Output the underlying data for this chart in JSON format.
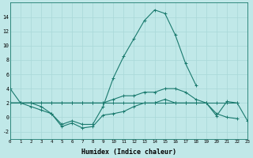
{
  "x": [
    0,
    1,
    2,
    3,
    4,
    5,
    6,
    7,
    8,
    9,
    10,
    11,
    12,
    13,
    14,
    15,
    16,
    17,
    18,
    19,
    20,
    21,
    22,
    23
  ],
  "line1": [
    4,
    2,
    2,
    1.5,
    0.5,
    -1,
    -0.5,
    -1,
    -1,
    1.5,
    5.5,
    8.5,
    11,
    13.5,
    15,
    14.5,
    11.5,
    7.5,
    4.5,
    null,
    null,
    null,
    null,
    null
  ],
  "line2": [
    2,
    2,
    1.5,
    1,
    0.5,
    -1.3,
    -0.8,
    -1.5,
    -1.3,
    0.3,
    0.5,
    0.8,
    1.5,
    2,
    2,
    2.5,
    2,
    2,
    2,
    2,
    0.2,
    2.2,
    2,
    -0.5
  ],
  "line3": [
    2,
    2,
    2,
    2,
    2,
    2,
    2,
    2,
    2,
    2,
    2.5,
    3,
    3,
    3.5,
    3.5,
    4,
    4,
    3.5,
    2.5,
    2,
    0.5,
    0,
    -0.2,
    null
  ],
  "line4": [
    2,
    2,
    2,
    2,
    2,
    2,
    2,
    2,
    2,
    2,
    2,
    2,
    2,
    2,
    2,
    2,
    2,
    2,
    2,
    2,
    2,
    2,
    2,
    null
  ],
  "line_color": "#1a7a6e",
  "bg_color": "#c0e8e8",
  "grid_color": "#a8d8d8",
  "xlabel": "Humidex (Indice chaleur)",
  "ylim": [
    -3,
    16
  ],
  "xlim": [
    0,
    23
  ],
  "yticks": [
    -2,
    0,
    2,
    4,
    6,
    8,
    10,
    12,
    14
  ],
  "xticks": [
    0,
    1,
    2,
    3,
    4,
    5,
    6,
    7,
    8,
    9,
    10,
    11,
    12,
    13,
    14,
    15,
    16,
    17,
    18,
    19,
    20,
    21,
    22,
    23
  ],
  "marker": "+",
  "markersize": 3,
  "linewidth": 0.8
}
